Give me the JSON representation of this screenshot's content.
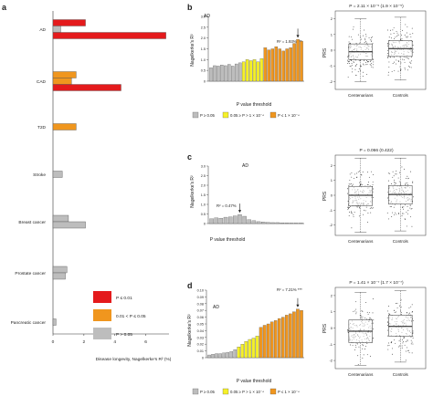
{
  "panel_labels": {
    "a": "a",
    "b": "b",
    "c": "c",
    "d": "d"
  },
  "colors": {
    "red": "#e41a1c",
    "orange": "#f0961e",
    "gray": "#bdbdbd",
    "yellow": "#f5f028",
    "box": "#fff",
    "dots": "#333333"
  },
  "panel_a": {
    "categories": [
      "AD",
      "CAD",
      "T2D",
      "Stroke",
      "Breast cancer",
      "Prostate cancer",
      "Pancreatic cancer"
    ],
    "xlabel": "Disease longevity, Nagelkerke's R² (%)",
    "xticks": [
      "0",
      "2",
      "4",
      "6"
    ],
    "legend": [
      {
        "label": "P ≤ 0.01",
        "color": "#e41a1c"
      },
      {
        "label": "0.01 < P ≤ 0.05",
        "color": "#f0961e"
      },
      {
        "label": "P > 0.05",
        "color": "#bdbdbd"
      }
    ]
  },
  "panel_b": {
    "title": "AD",
    "ylabel": "Nagelkerke's R²",
    "xlabel": "P value threshold",
    "yticks": [
      "0",
      "0.5",
      "1.0",
      "1.5",
      "2.0",
      "2.5",
      "3.0"
    ],
    "annotation": "R² = 1.93% ***",
    "legend": [
      {
        "label": "P ≥ 0.05",
        "color": "#bdbdbd"
      },
      {
        "label": "0.05 ≥ P > 1 × 10⁻⁴",
        "color": "#f5f028"
      },
      {
        "label": "P ≤ 1 × 10⁻⁴",
        "color": "#f0961e"
      }
    ],
    "box_title": "P = 2.11 × 10⁻⁵ (1.9 × 10⁻⁵)",
    "box_ylabel": "PRS",
    "box_groups": [
      "Centenarians",
      "Controls"
    ],
    "box_yticks": [
      "2",
      "1",
      "0",
      "-1",
      "-2"
    ]
  },
  "panel_c": {
    "title": "AD",
    "ylabel": "Nagelkerke's R²",
    "xlabel": "P value threshold",
    "yticks": [
      "0",
      "0.5",
      "1.0",
      "1.5",
      "2.0",
      "2.5",
      "3.0"
    ],
    "annotation": "R² = 0.47%",
    "box_title": "P = 0.066 (0.422)",
    "box_ylabel": "PRS",
    "box_groups": [
      "Centenarians",
      "Controls"
    ],
    "box_yticks": [
      "2",
      "1",
      "0",
      "-1",
      "-2"
    ]
  },
  "panel_d": {
    "title": "AD",
    "ylabel": "Nagelkerke's R²",
    "xlabel": "P value threshold",
    "yticks": [
      "0",
      "0.01",
      "0.02",
      "0.03",
      "0.04",
      "0.05",
      "0.06",
      "0.07",
      "0.08",
      "0.09",
      "0.10"
    ],
    "annotation": "R² = 7.21% ***",
    "legend": [
      {
        "label": "P ≥ 0.05",
        "color": "#bdbdbd"
      },
      {
        "label": "0.05 ≥ P > 1 × 10⁻⁴",
        "color": "#f5f028"
      },
      {
        "label": "P ≤ 1 × 10⁻⁴",
        "color": "#f0961e"
      }
    ],
    "box_title": "P = 1.41 × 10⁻⁷ (1.7 × 10⁻⁷)",
    "box_ylabel": "PRS",
    "box_groups": [
      "Centenarians",
      "Controls"
    ],
    "box_yticks": [
      "2",
      "1",
      "0",
      "-1",
      "-2"
    ]
  },
  "chart_data": [
    {
      "type": "bar",
      "panel": "a",
      "orientation": "horizontal",
      "categories": [
        "AD",
        "CAD",
        "T2D",
        "Stroke",
        "Breast cancer",
        "Prostate cancer",
        "Pancreatic cancer"
      ],
      "groups": [
        [
          {
            "value": 2.1,
            "sig": "red"
          },
          {
            "value": 0.5,
            "sig": "gray"
          },
          {
            "value": 7.3,
            "sig": "red"
          }
        ],
        [
          {
            "value": 1.5,
            "sig": "orange"
          },
          {
            "value": 1.2,
            "sig": "orange"
          },
          {
            "value": 4.4,
            "sig": "red"
          }
        ],
        [
          {
            "value": 1.5,
            "sig": "orange"
          }
        ],
        [
          {
            "value": 0.6,
            "sig": "gray"
          }
        ],
        [
          {
            "value": 1.0,
            "sig": "gray"
          },
          {
            "value": 2.1,
            "sig": "gray"
          }
        ],
        [
          {
            "value": 0.9,
            "sig": "gray"
          },
          {
            "value": 0.8,
            "sig": "gray"
          }
        ],
        [
          {
            "value": 0.2,
            "sig": "gray"
          }
        ]
      ],
      "xlim": [
        0,
        7.5
      ]
    },
    {
      "type": "bar",
      "panel": "b",
      "values": [
        0.62,
        0.72,
        0.7,
        0.75,
        0.72,
        0.78,
        0.7,
        0.8,
        0.85,
        0.9,
        1.0,
        0.95,
        1.0,
        0.9,
        1.05,
        1.55,
        1.45,
        1.5,
        1.6,
        1.5,
        1.4,
        1.5,
        1.55,
        1.75,
        1.93,
        1.85
      ],
      "sig": [
        "gray",
        "gray",
        "gray",
        "gray",
        "gray",
        "gray",
        "gray",
        "gray",
        "gray",
        "yellow",
        "yellow",
        "yellow",
        "yellow",
        "yellow",
        "yellow",
        "orange",
        "orange",
        "orange",
        "orange",
        "orange",
        "orange",
        "orange",
        "orange",
        "orange",
        "orange",
        "orange"
      ],
      "ylim": [
        0,
        3.0
      ]
    },
    {
      "type": "bar",
      "panel": "c",
      "values": [
        0.25,
        0.3,
        0.28,
        0.33,
        0.35,
        0.4,
        0.47,
        0.38,
        0.2,
        0.15,
        0.1,
        0.08,
        0.06,
        0.05,
        0.05,
        0.04,
        0.04,
        0.03,
        0.03,
        0.03
      ],
      "sig": [
        "gray",
        "gray",
        "gray",
        "gray",
        "gray",
        "gray",
        "gray",
        "gray",
        "gray",
        "gray",
        "gray",
        "gray",
        "gray",
        "gray",
        "gray",
        "gray",
        "gray",
        "gray",
        "gray",
        "gray"
      ],
      "ylim": [
        0,
        3.0
      ]
    },
    {
      "type": "bar",
      "panel": "d",
      "values": [
        0.004,
        0.005,
        0.006,
        0.006,
        0.007,
        0.008,
        0.009,
        0.012,
        0.016,
        0.02,
        0.024,
        0.027,
        0.029,
        0.032,
        0.045,
        0.048,
        0.05,
        0.053,
        0.055,
        0.058,
        0.06,
        0.063,
        0.065,
        0.068,
        0.072,
        0.07
      ],
      "sig": [
        "gray",
        "gray",
        "gray",
        "gray",
        "gray",
        "gray",
        "gray",
        "gray",
        "yellow",
        "yellow",
        "yellow",
        "yellow",
        "yellow",
        "yellow",
        "orange",
        "orange",
        "orange",
        "orange",
        "orange",
        "orange",
        "orange",
        "orange",
        "orange",
        "orange",
        "orange",
        "orange"
      ],
      "ylim": [
        0,
        0.1
      ]
    },
    {
      "type": "box",
      "panel": "b",
      "groups": [
        "Centenarians",
        "Controls"
      ],
      "stats": [
        {
          "q1": -0.6,
          "median": -0.1,
          "q3": 0.4,
          "min": -2.0,
          "max": 2.0
        },
        {
          "q1": -0.4,
          "median": 0.1,
          "q3": 0.6,
          "min": -1.9,
          "max": 2.1
        }
      ],
      "ylim": [
        -2.5,
        2.5
      ]
    },
    {
      "type": "box",
      "panel": "c",
      "groups": [
        "Centenarians",
        "Controls"
      ],
      "stats": [
        {
          "q1": -0.7,
          "median": 0.0,
          "q3": 0.6,
          "min": -2.5,
          "max": 2.5
        },
        {
          "q1": -0.6,
          "median": 0.05,
          "q3": 0.65,
          "min": -2.4,
          "max": 2.5
        }
      ],
      "ylim": [
        -2.7,
        2.7
      ]
    },
    {
      "type": "box",
      "panel": "d",
      "groups": [
        "Centenarians",
        "Controls"
      ],
      "stats": [
        {
          "q1": -0.9,
          "median": -0.2,
          "q3": 0.5,
          "min": -2.3,
          "max": 2.2
        },
        {
          "q1": -0.5,
          "median": 0.1,
          "q3": 0.8,
          "min": -2.1,
          "max": 2.3
        }
      ],
      "ylim": [
        -2.5,
        2.5
      ]
    }
  ]
}
